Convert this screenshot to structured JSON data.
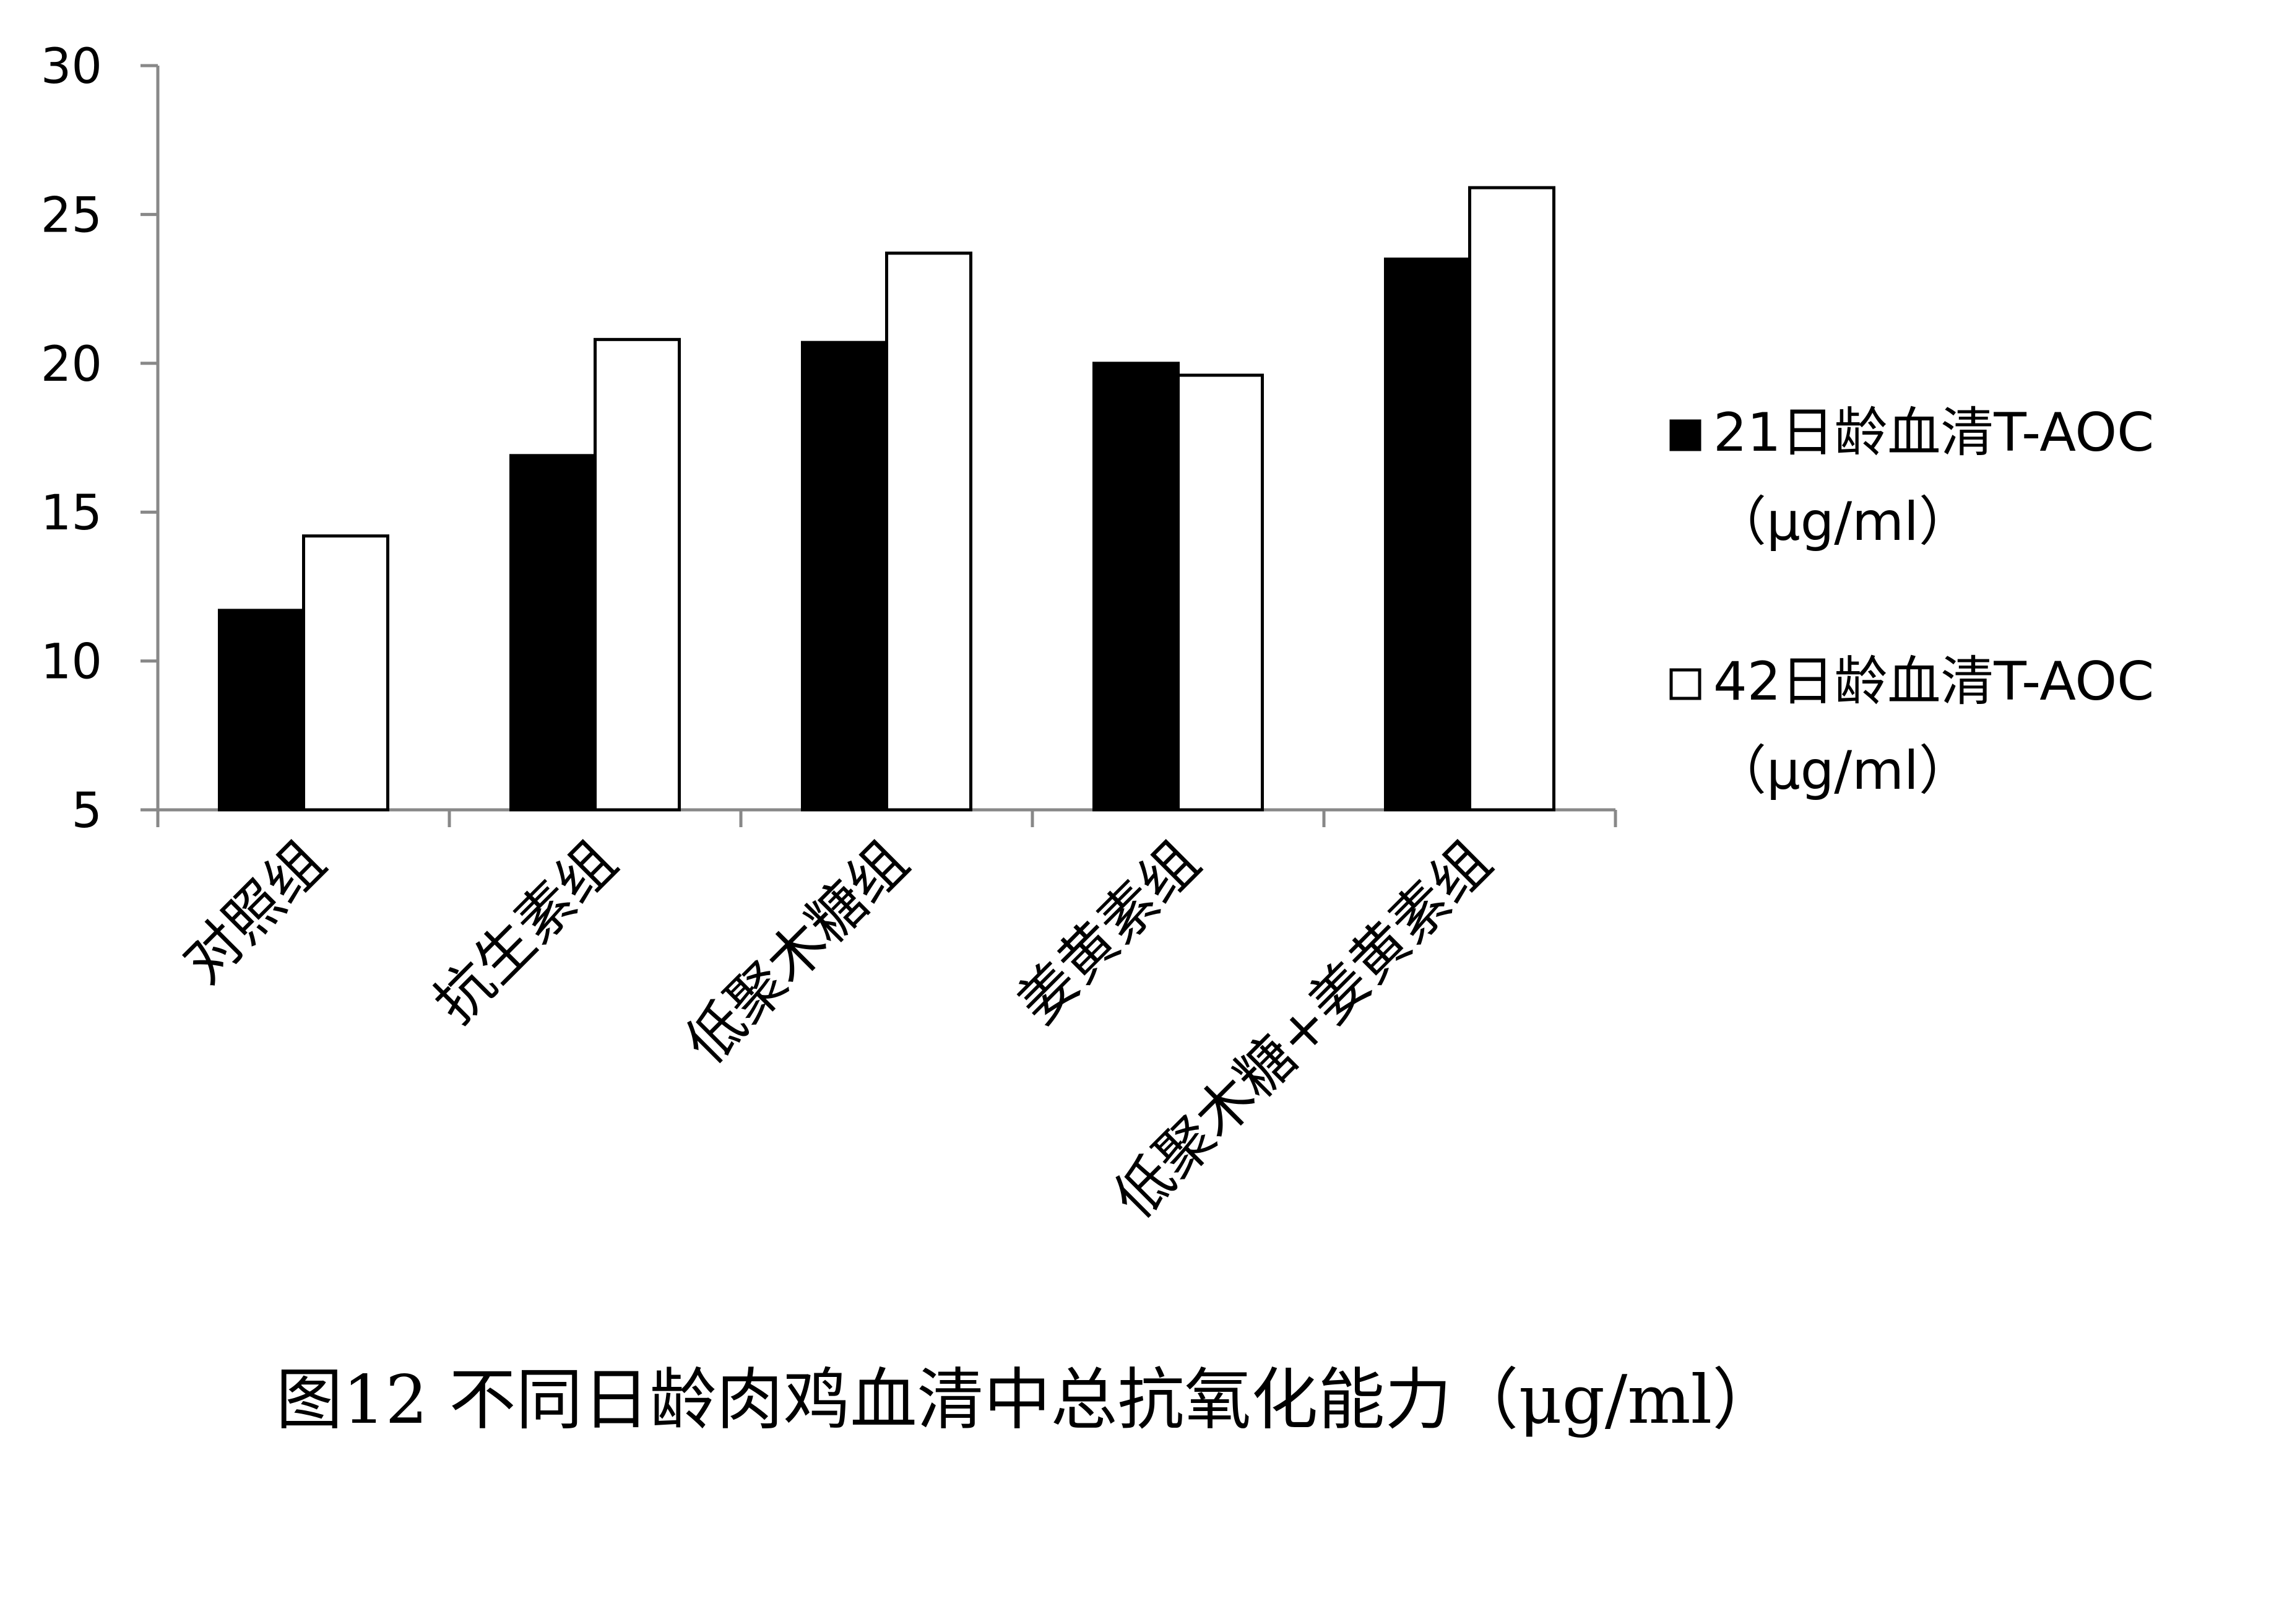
{
  "chart_data": {
    "type": "bar",
    "title": "",
    "caption": "图12 不同日龄肉鸡血清中总抗氧化能力（μg/ml）",
    "xlabel": "",
    "ylabel": "",
    "categories": [
      "对照组",
      "抗生素组",
      "低聚木糖组",
      "姜黄素组",
      "低聚木糖+姜黄素组"
    ],
    "series": [
      {
        "name": "21日龄血清T-AOC",
        "unit": "（μg/ml）",
        "values": [
          11.7,
          16.9,
          20.7,
          20.0,
          23.5
        ],
        "color": "#000000"
      },
      {
        "name": "42日龄血清T-AOC",
        "unit": "（μg/ml）",
        "values": [
          14.2,
          20.8,
          23.7,
          19.6,
          25.9
        ],
        "color": "#ffffff"
      }
    ],
    "ylim": [
      5,
      30
    ],
    "yticks": [
      5,
      10,
      15,
      20,
      25,
      30
    ],
    "grid": false,
    "legend_position": "right"
  }
}
